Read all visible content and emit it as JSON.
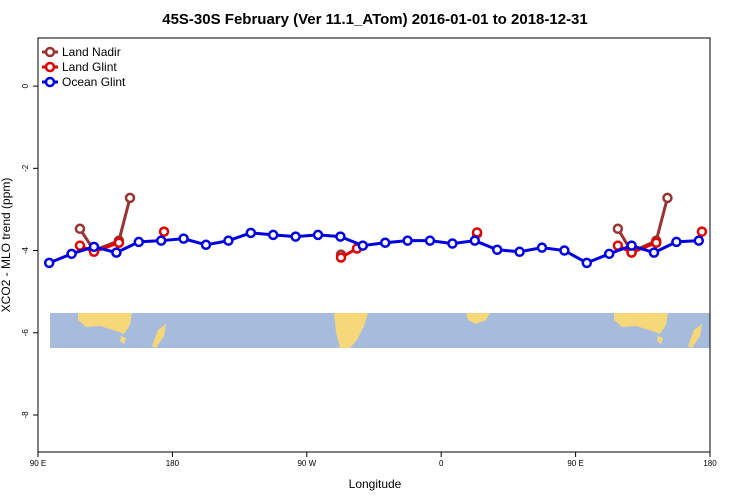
{
  "chart_data": {
    "type": "line",
    "title": "45S-30S February (Ver 11.1_ATom)   2016-01-01 to 2018-12-31",
    "x_label": "Longitude",
    "y_label": "XCO2 - MLO trend (ppm)",
    "xlim": [
      90,
      540
    ],
    "ylim": [
      -8.9,
      1.17
    ],
    "xticks": [
      {
        "value": 90,
        "label": "90 E"
      },
      180,
      {
        "value": 270,
        "label": "90 W"
      },
      {
        "value": 360,
        "label": "0"
      },
      {
        "value": 450,
        "label": "90 E"
      },
      {
        "value": 540,
        "label": "180"
      }
    ],
    "yticks": [
      0,
      -2,
      -4,
      -6,
      -8
    ],
    "legend": "top-left",
    "series": [
      {
        "name": "Land Nadir",
        "color": "#993333",
        "x": [
          118.1,
          127.5,
          144.2,
          151.6,
          null,
          292.9,
          null,
          384,
          null,
          478.3,
          487.5,
          504,
          511.5
        ],
        "values": [
          -3.47,
          -4.0,
          -3.76,
          -2.72,
          null,
          -4.1,
          null,
          -3.59,
          null,
          -3.47,
          -4.03,
          -3.76,
          -2.72
        ]
      },
      {
        "name": "Land Glint",
        "color": "#e00000",
        "x": [
          118.1,
          127.5,
          144.2,
          null,
          174.4,
          null,
          292.9,
          303.6,
          null,
          384,
          null,
          478.3,
          487.5,
          504,
          null,
          534.6
        ],
        "values": [
          -3.88,
          -4.03,
          -3.81,
          null,
          -3.54,
          null,
          -4.17,
          -3.95,
          null,
          -3.56,
          null,
          -3.88,
          -4.05,
          -3.81,
          null,
          -3.54
        ]
      },
      {
        "name": "Ocean Glint",
        "color": "#0000e0",
        "x": [
          97.5,
          112.5,
          127.5,
          142.5,
          157.5,
          172.5,
          187.5,
          202.5,
          217.5,
          232.5,
          247.5,
          262.5,
          277.5,
          292.5,
          307.5,
          322.5,
          337.5,
          352.5,
          367.5,
          382.5,
          397.5,
          412.5,
          427.5,
          442.5,
          457.5,
          472.5,
          487.5,
          502.5,
          517.5,
          532.5
        ],
        "values": [
          -4.3,
          -4.08,
          -3.91,
          -4.05,
          -3.79,
          -3.76,
          -3.71,
          -3.86,
          -3.76,
          -3.57,
          -3.62,
          -3.66,
          -3.62,
          -3.66,
          -3.88,
          -3.81,
          -3.76,
          -3.76,
          -3.83,
          -3.76,
          -3.98,
          -4.03,
          -3.93,
          -4.0,
          -4.3,
          -4.08,
          -3.88,
          -4.05,
          -3.79,
          -3.76
        ]
      }
    ]
  }
}
